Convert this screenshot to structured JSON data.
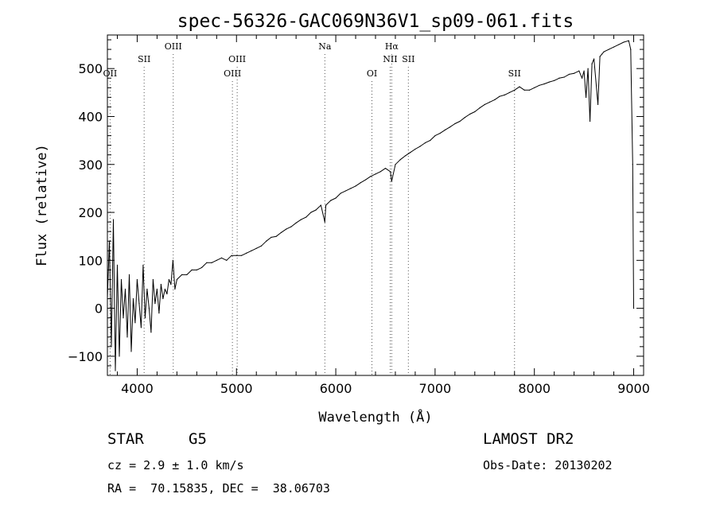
{
  "chart_data": {
    "type": "line",
    "title": "spec-56326-GAC069N36V1_sp09-061.fits",
    "xlabel": "Wavelength (Å)",
    "ylabel": "Flux (relative)",
    "xlim": [
      3700,
      9100
    ],
    "ylim": [
      -140,
      570
    ],
    "x_ticks": [
      {
        "value": 4000,
        "label": "4000"
      },
      {
        "value": 5000,
        "label": "5000"
      },
      {
        "value": 6000,
        "label": "6000"
      },
      {
        "value": 7000,
        "label": "7000"
      },
      {
        "value": 8000,
        "label": "8000"
      },
      {
        "value": 9000,
        "label": "9000"
      }
    ],
    "y_ticks": [
      {
        "value": -100,
        "label": "−100"
      },
      {
        "value": 0,
        "label": "0"
      },
      {
        "value": 100,
        "label": "100"
      },
      {
        "value": 200,
        "label": "200"
      },
      {
        "value": 300,
        "label": "300"
      },
      {
        "value": 400,
        "label": "400"
      },
      {
        "value": 500,
        "label": "500"
      }
    ],
    "grid": false,
    "series": [
      {
        "color": "#000000",
        "x": [
          3700,
          3720,
          3740,
          3760,
          3780,
          3800,
          3820,
          3840,
          3860,
          3880,
          3900,
          3920,
          3940,
          3960,
          3980,
          4000,
          4020,
          4040,
          4060,
          4080,
          4100,
          4120,
          4140,
          4160,
          4180,
          4200,
          4220,
          4240,
          4260,
          4280,
          4300,
          4320,
          4340,
          4360,
          4380,
          4400,
          4450,
          4500,
          4550,
          4600,
          4650,
          4700,
          4750,
          4800,
          4850,
          4900,
          4950,
          5000,
          5050,
          5100,
          5150,
          5200,
          5250,
          5300,
          5350,
          5400,
          5450,
          5500,
          5550,
          5600,
          5650,
          5700,
          5750,
          5800,
          5850,
          5890,
          5900,
          5950,
          6000,
          6050,
          6100,
          6150,
          6200,
          6250,
          6300,
          6350,
          6400,
          6450,
          6500,
          6550,
          6563,
          6600,
          6650,
          6700,
          6750,
          6800,
          6850,
          6900,
          6950,
          7000,
          7050,
          7100,
          7150,
          7200,
          7250,
          7300,
          7350,
          7400,
          7450,
          7500,
          7550,
          7600,
          7650,
          7700,
          7750,
          7800,
          7850,
          7900,
          7950,
          8000,
          8050,
          8100,
          8150,
          8200,
          8250,
          8300,
          8350,
          8400,
          8450,
          8480,
          8500,
          8520,
          8540,
          8560,
          8580,
          8600,
          8640,
          8660,
          8680,
          8700,
          8750,
          8800,
          8850,
          8900,
          8950,
          8970,
          8990,
          9000
        ],
        "y": [
          20,
          140,
          -80,
          185,
          -130,
          90,
          -100,
          60,
          -20,
          40,
          -60,
          70,
          -90,
          20,
          -30,
          60,
          10,
          -40,
          90,
          -20,
          40,
          0,
          -50,
          60,
          10,
          40,
          -10,
          50,
          20,
          40,
          30,
          60,
          50,
          100,
          40,
          60,
          70,
          70,
          80,
          80,
          85,
          95,
          95,
          100,
          105,
          100,
          110,
          110,
          110,
          115,
          120,
          125,
          130,
          140,
          148,
          150,
          158,
          165,
          170,
          178,
          185,
          190,
          200,
          205,
          215,
          180,
          215,
          225,
          230,
          240,
          245,
          250,
          255,
          262,
          268,
          275,
          280,
          285,
          292,
          285,
          265,
          300,
          310,
          318,
          325,
          332,
          338,
          345,
          350,
          360,
          365,
          372,
          378,
          385,
          390,
          398,
          405,
          410,
          418,
          425,
          430,
          435,
          442,
          445,
          450,
          455,
          462,
          455,
          455,
          460,
          465,
          468,
          472,
          475,
          480,
          482,
          488,
          490,
          495,
          480,
          495,
          440,
          500,
          390,
          510,
          520,
          425,
          525,
          530,
          535,
          540,
          545,
          550,
          555,
          558,
          540,
          300,
          0
        ]
      }
    ],
    "line_markers": [
      {
        "wavelength": 3727,
        "label": "OII",
        "row": 3
      },
      {
        "wavelength": 4070,
        "label": "SII",
        "row": 2
      },
      {
        "wavelength": 4363,
        "label": "OIII",
        "row": 1
      },
      {
        "wavelength": 4959,
        "label": "OIII",
        "row": 3
      },
      {
        "wavelength": 5007,
        "label": "OIII",
        "row": 2
      },
      {
        "wavelength": 5890,
        "label": "Na",
        "row": 1
      },
      {
        "wavelength": 6364,
        "label": "OI",
        "row": 3
      },
      {
        "wavelength": 6548,
        "label": "NII",
        "row": 2
      },
      {
        "wavelength": 6563,
        "label": "Hα",
        "row": 1
      },
      {
        "wavelength": 6731,
        "label": "SII",
        "row": 2
      },
      {
        "wavelength": 7800,
        "label": "SII",
        "row": 3
      }
    ]
  },
  "info": {
    "class_label": "STAR",
    "subclass_label": "G5",
    "survey": "LAMOST DR2",
    "cz": "cz = 2.9 ± 1.0 km/s",
    "obs_date": "Obs-Date: 20130202",
    "coords": "RA =  70.15835, DEC =  38.06703"
  }
}
